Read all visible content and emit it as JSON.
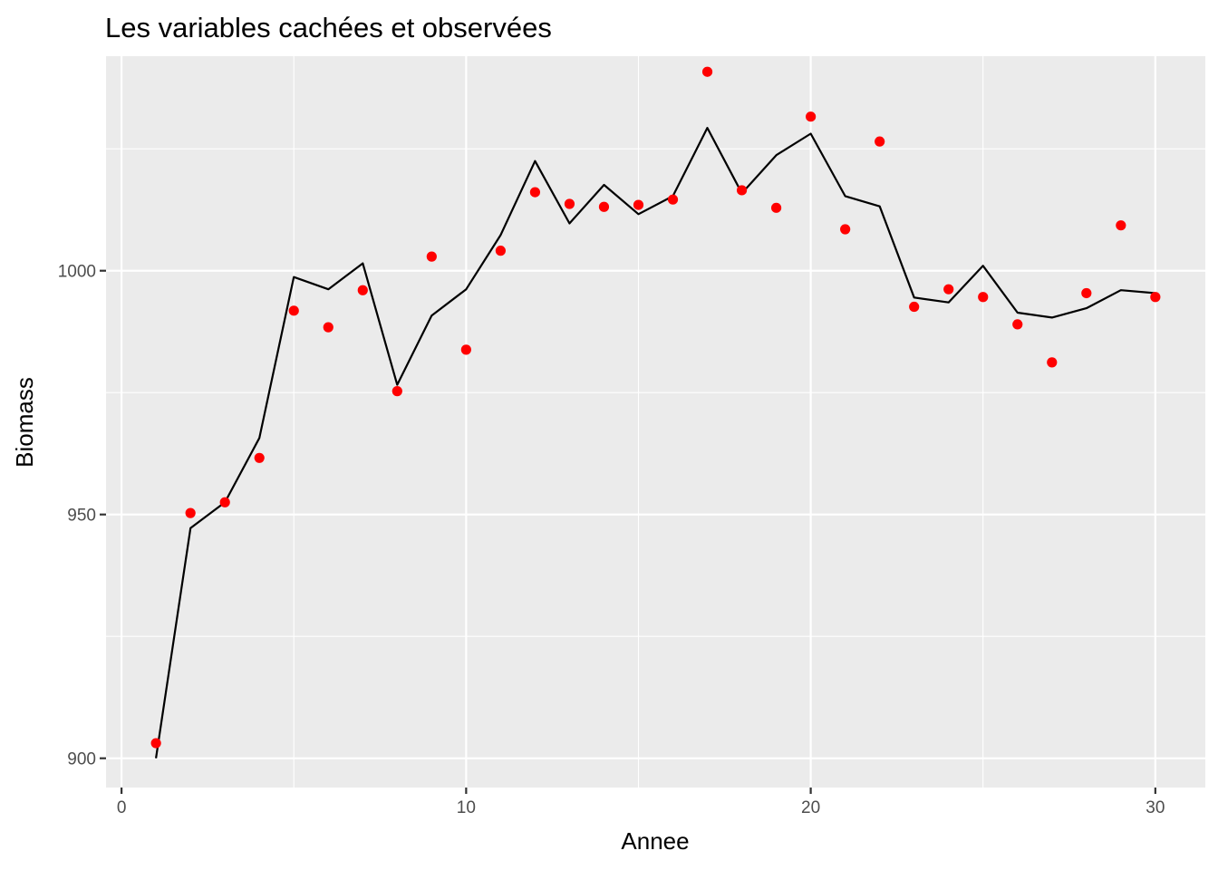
{
  "chart_data": {
    "type": "line",
    "title": "Les variables cachées et observées",
    "xlabel": "Annee",
    "ylabel": "Biomass",
    "xlim": [
      -0.45,
      31.45
    ],
    "ylim": [
      894,
      1044
    ],
    "x_ticks": [
      0,
      10,
      20,
      30
    ],
    "x_tick_labels": [
      "0",
      "10",
      "20",
      "30"
    ],
    "x_minor": [
      5,
      15,
      25
    ],
    "y_ticks": [
      900,
      950,
      1000
    ],
    "y_tick_labels": [
      "900",
      "950",
      "1000"
    ],
    "y_minor": [
      925,
      975,
      1025
    ],
    "grid": true,
    "legend": "none",
    "x": [
      1,
      2,
      3,
      4,
      5,
      6,
      7,
      8,
      9,
      10,
      11,
      12,
      13,
      14,
      15,
      16,
      17,
      18,
      19,
      20,
      21,
      22,
      23,
      24,
      25,
      26,
      27,
      28,
      29,
      30
    ],
    "series": [
      {
        "kind": "line",
        "color": "#000000",
        "values": [
          900.0,
          947.2,
          952.5,
          965.7,
          998.7,
          996.2,
          1001.5,
          976.6,
          990.8,
          996.2,
          1007.3,
          1022.5,
          1009.7,
          1017.6,
          1011.6,
          1015.3,
          1029.3,
          1015.9,
          1023.7,
          1028.1,
          1015.3,
          1013.2,
          994.5,
          993.5,
          1001.0,
          991.4,
          990.4,
          992.3,
          996.0,
          995.4
        ]
      },
      {
        "kind": "points",
        "color": "#ff0000",
        "values": [
          903.1,
          950.3,
          952.5,
          961.6,
          991.8,
          988.4,
          996.0,
          975.3,
          1002.9,
          983.8,
          1004.1,
          1016.1,
          1013.7,
          1013.1,
          1013.5,
          1014.6,
          1040.8,
          1016.5,
          1012.9,
          1031.6,
          1008.5,
          1026.5,
          992.6,
          996.2,
          994.6,
          989.0,
          981.2,
          995.4,
          1009.3,
          994.6
        ]
      }
    ]
  }
}
